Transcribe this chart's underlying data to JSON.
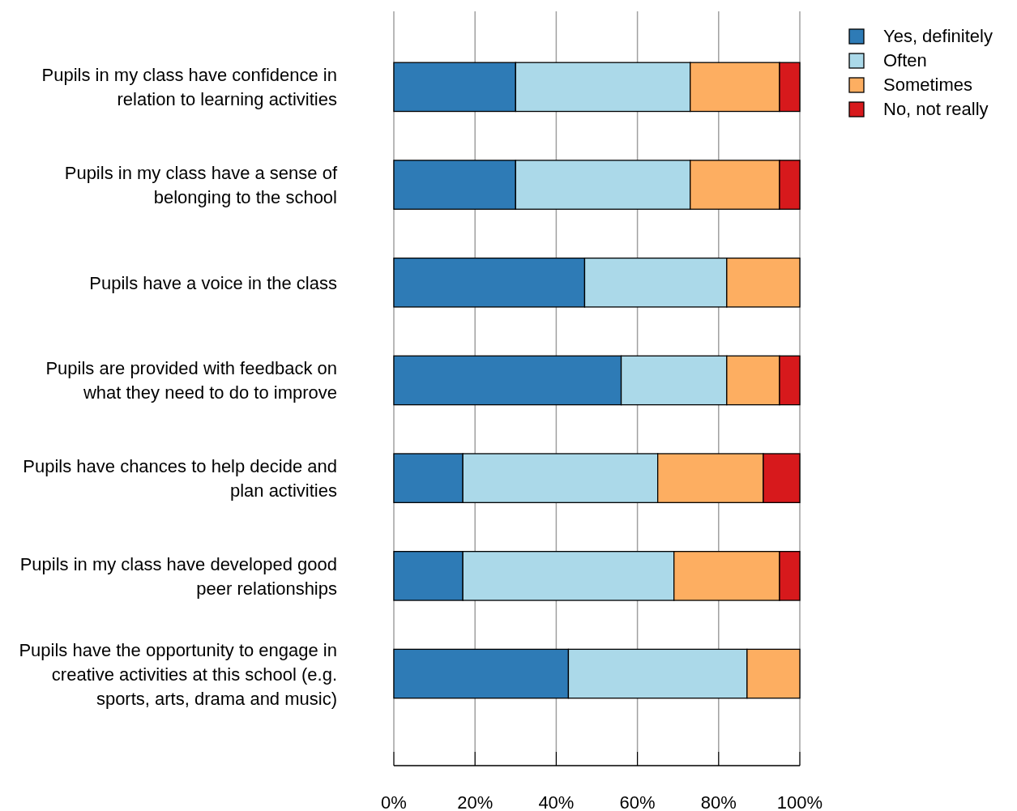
{
  "chart_data": {
    "type": "bar",
    "orientation": "horizontal",
    "stacked": true,
    "categories": [
      "Pupils in my class have confidence in relation to learning activities",
      "Pupils in my class have a sense of belonging to the school",
      "Pupils have a voice in the class",
      "Pupils are provided with feedback on what they need to do to improve",
      "Pupils have chances to help decide and plan activities",
      "Pupils in my class have developed good peer relationships",
      "Pupils have the opportunity to engage in creative activities at this school (e.g. sports, arts, drama and music)"
    ],
    "series": [
      {
        "name": "Yes, definitely",
        "color": "#2e7bb6",
        "values": [
          30,
          30,
          47,
          56,
          17,
          17,
          43
        ]
      },
      {
        "name": "Often",
        "color": "#abd9e9",
        "values": [
          43,
          43,
          35,
          26,
          48,
          52,
          44
        ]
      },
      {
        "name": "Sometimes",
        "color": "#fdae61",
        "values": [
          22,
          22,
          18,
          13,
          26,
          26,
          13
        ]
      },
      {
        "name": "No, not really",
        "color": "#d7191c",
        "values": [
          5,
          5,
          0,
          5,
          9,
          5,
          0
        ]
      }
    ],
    "xlim": [
      0,
      100
    ],
    "xticks": [
      {
        "value": 0,
        "label": "0%"
      },
      {
        "value": 20,
        "label": "20%"
      },
      {
        "value": 40,
        "label": "40%"
      },
      {
        "value": 60,
        "label": "60%"
      },
      {
        "value": 80,
        "label": "80%"
      },
      {
        "value": 100,
        "label": "100%"
      }
    ],
    "grid": "x",
    "legend": "top right"
  }
}
